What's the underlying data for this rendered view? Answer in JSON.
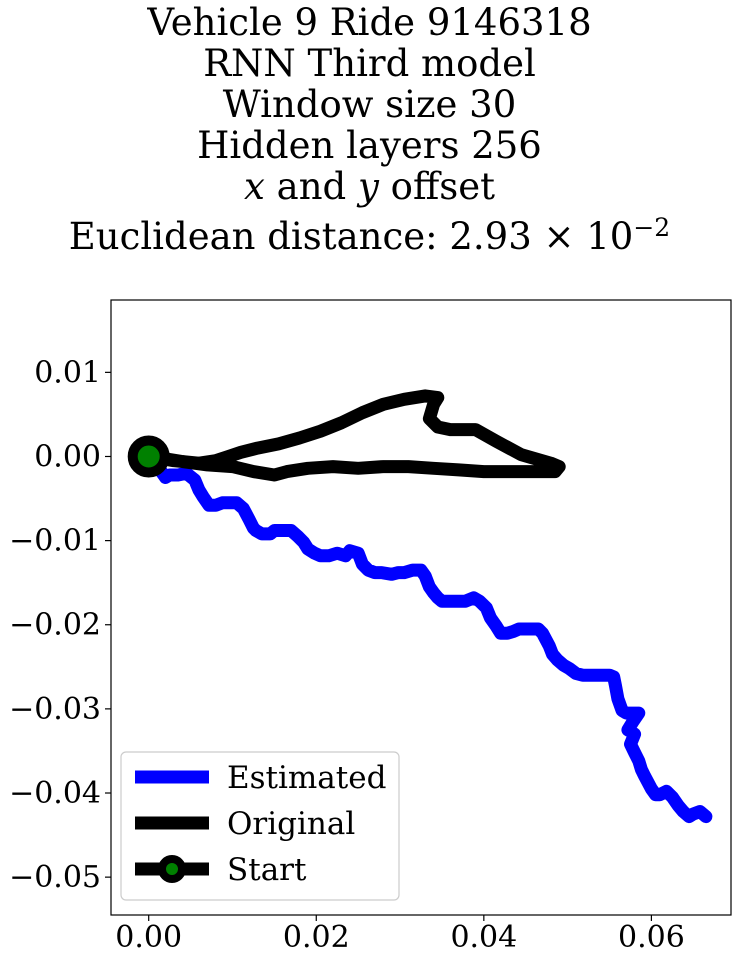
{
  "chart_data": {
    "type": "line",
    "title_lines": [
      "Vehicle 9 Ride 9146318",
      "RNN Third model",
      "Window size 30",
      "Hidden layers 256"
    ],
    "title_var_x": "x",
    "title_and": " and ",
    "title_var_y": "y",
    "title_offset": " offset",
    "title_distance": "Euclidean distance: 2.93 × 10",
    "title_distance_exp": "−2",
    "xlim": [
      -0.0045,
      0.0695
    ],
    "ylim": [
      -0.0545,
      0.0186
    ],
    "xticks": [
      0.0,
      0.02,
      0.04,
      0.06
    ],
    "xtick_labels": [
      "0.00",
      "0.02",
      "0.04",
      "0.06"
    ],
    "yticks": [
      0.01,
      0.0,
      -0.01,
      -0.02,
      -0.03,
      -0.04,
      -0.05
    ],
    "ytick_labels": [
      "0.01",
      "0.00",
      "−0.01",
      "−0.02",
      "−0.03",
      "−0.04",
      "−0.05"
    ],
    "grid": false,
    "legend_position": "lower-left",
    "series": [
      {
        "name": "Estimated",
        "color": "#0000ff",
        "x": [
          0.0,
          0.0015,
          0.002,
          0.0025,
          0.0035,
          0.0045,
          0.0055,
          0.006,
          0.0065,
          0.0072,
          0.008,
          0.0088,
          0.0095,
          0.0105,
          0.0113,
          0.012,
          0.0125,
          0.0128,
          0.0135,
          0.0145,
          0.015,
          0.016,
          0.017,
          0.0178,
          0.0185,
          0.019,
          0.0198,
          0.0205,
          0.0215,
          0.0225,
          0.0235,
          0.024,
          0.025,
          0.0255,
          0.0262,
          0.027,
          0.0278,
          0.029,
          0.0298,
          0.0305,
          0.0315,
          0.0325,
          0.033,
          0.0335,
          0.034,
          0.0345,
          0.035,
          0.036,
          0.037,
          0.0378,
          0.0388,
          0.0395,
          0.0403,
          0.0408,
          0.0415,
          0.042,
          0.0428,
          0.0435,
          0.0442,
          0.045,
          0.0458,
          0.0465,
          0.047,
          0.0478,
          0.0482,
          0.0488,
          0.0495,
          0.0502,
          0.051,
          0.0518,
          0.0525,
          0.0535,
          0.0545,
          0.055,
          0.0555,
          0.0557,
          0.056,
          0.0565,
          0.057,
          0.0578,
          0.0585,
          0.0578,
          0.0572,
          0.058,
          0.0575,
          0.058,
          0.0585,
          0.0588,
          0.0592,
          0.06,
          0.0605,
          0.061,
          0.0618,
          0.0625,
          0.0632,
          0.0638,
          0.0645,
          0.065,
          0.0658,
          0.0665
        ],
        "y": [
          0.0,
          -0.0018,
          -0.0025,
          -0.0022,
          -0.0022,
          -0.002,
          -0.0028,
          -0.004,
          -0.0048,
          -0.0058,
          -0.0058,
          -0.0055,
          -0.0055,
          -0.0055,
          -0.0062,
          -0.0075,
          -0.0085,
          -0.0088,
          -0.0092,
          -0.0092,
          -0.0088,
          -0.0088,
          -0.0088,
          -0.0095,
          -0.0102,
          -0.011,
          -0.0115,
          -0.0118,
          -0.0118,
          -0.0115,
          -0.0118,
          -0.0112,
          -0.0115,
          -0.0128,
          -0.0135,
          -0.0138,
          -0.0138,
          -0.014,
          -0.0138,
          -0.0138,
          -0.0135,
          -0.0135,
          -0.0142,
          -0.0155,
          -0.0162,
          -0.0168,
          -0.0172,
          -0.0172,
          -0.0172,
          -0.0172,
          -0.0168,
          -0.0172,
          -0.018,
          -0.0192,
          -0.0202,
          -0.021,
          -0.021,
          -0.0208,
          -0.0205,
          -0.0205,
          -0.0205,
          -0.0205,
          -0.021,
          -0.0225,
          -0.0235,
          -0.0242,
          -0.0248,
          -0.0252,
          -0.0258,
          -0.026,
          -0.026,
          -0.026,
          -0.026,
          -0.026,
          -0.0262,
          -0.0272,
          -0.0288,
          -0.0302,
          -0.0305,
          -0.0305,
          -0.0305,
          -0.0315,
          -0.0325,
          -0.033,
          -0.0342,
          -0.0352,
          -0.0362,
          -0.0372,
          -0.038,
          -0.0395,
          -0.0402,
          -0.0402,
          -0.0398,
          -0.0405,
          -0.0415,
          -0.0422,
          -0.0428,
          -0.0425,
          -0.0422,
          -0.0428
        ]
      },
      {
        "name": "Original",
        "color": "#000000",
        "x": [
          0.0,
          0.003,
          0.006,
          0.008,
          0.0095,
          0.011,
          0.013,
          0.0155,
          0.018,
          0.0205,
          0.023,
          0.0255,
          0.028,
          0.0305,
          0.033,
          0.0345,
          0.034,
          0.0335,
          0.0345,
          0.036,
          0.0375,
          0.039,
          0.0415,
          0.0445,
          0.048,
          0.049,
          0.0485,
          0.046,
          0.043,
          0.04,
          0.037,
          0.034,
          0.031,
          0.028,
          0.025,
          0.022,
          0.019,
          0.0165,
          0.015,
          0.0125,
          0.01,
          0.007,
          0.004,
          0.0015,
          0.0
        ],
        "y": [
          0.0,
          -0.0005,
          -0.0008,
          -0.0005,
          0.0,
          0.0005,
          0.001,
          0.0015,
          0.0022,
          0.003,
          0.004,
          0.0052,
          0.0062,
          0.0068,
          0.0072,
          0.007,
          0.0062,
          0.0045,
          0.0035,
          0.0032,
          0.0032,
          0.0032,
          0.0018,
          0.0002,
          -0.0008,
          -0.0012,
          -0.0018,
          -0.0018,
          -0.0018,
          -0.0018,
          -0.0016,
          -0.0014,
          -0.0012,
          -0.0012,
          -0.0014,
          -0.0012,
          -0.0014,
          -0.0018,
          -0.0022,
          -0.0018,
          -0.0012,
          -0.001,
          -0.0006,
          -0.0002,
          0.0
        ]
      },
      {
        "name": "Start",
        "color": "#000000",
        "marker_face_color": "#008000",
        "x": [
          0.0
        ],
        "y": [
          0.0
        ]
      }
    ]
  }
}
